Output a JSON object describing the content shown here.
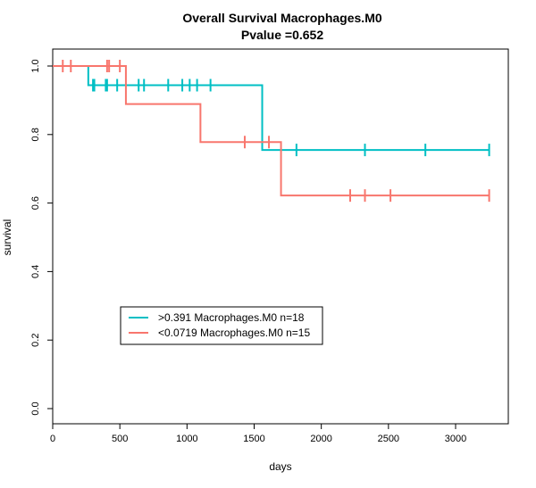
{
  "chart_data": {
    "type": "line",
    "step": true,
    "title": "Overall Survival Macrophages.M0",
    "subtitle": "Pvalue =0.652",
    "xlabel": "days",
    "ylabel": "survival",
    "xlim": [
      0,
      3400
    ],
    "ylim": [
      0,
      1
    ],
    "x_ticks": [
      0,
      500,
      1000,
      1500,
      2000,
      2500,
      3000
    ],
    "x_tick_labels": [
      "0",
      "500",
      "1000",
      "1500",
      "2000",
      "2500",
      "3000"
    ],
    "y_ticks": [
      0,
      0.2,
      0.4,
      0.6,
      0.8,
      1
    ],
    "y_tick_labels": [
      "0.0",
      "0.2",
      "0.4",
      "0.6",
      "0.8",
      "1.0"
    ],
    "grid": false,
    "legend_position": "bottom-left",
    "series": [
      {
        "name": ">0.391 Macrophages.M0 n=18",
        "color": "#00BFC4",
        "x": [
          0,
          265,
          1560,
          3250
        ],
        "y": [
          1.0,
          0.944,
          0.755,
          0.755
        ],
        "censor_x": [
          300,
          310,
          395,
          405,
          480,
          640,
          680,
          860,
          965,
          1020,
          1075,
          1175,
          1815,
          2325,
          2775,
          3250
        ],
        "censor_y": [
          0.944,
          0.944,
          0.944,
          0.944,
          0.944,
          0.944,
          0.944,
          0.944,
          0.944,
          0.944,
          0.944,
          0.944,
          0.755,
          0.755,
          0.755,
          0.755
        ]
      },
      {
        "name": "<0.0719 Macrophages.M0 n=15",
        "color": "#F8766D",
        "x": [
          0,
          545,
          1100,
          1700,
          3250
        ],
        "y": [
          1.0,
          0.889,
          0.778,
          0.622,
          0.622
        ],
        "censor_x": [
          75,
          135,
          405,
          420,
          500,
          1430,
          1610,
          2215,
          2325,
          2515,
          3250
        ],
        "censor_y": [
          1.0,
          1.0,
          1.0,
          1.0,
          1.0,
          0.778,
          0.778,
          0.622,
          0.622,
          0.622,
          0.622
        ]
      }
    ]
  }
}
